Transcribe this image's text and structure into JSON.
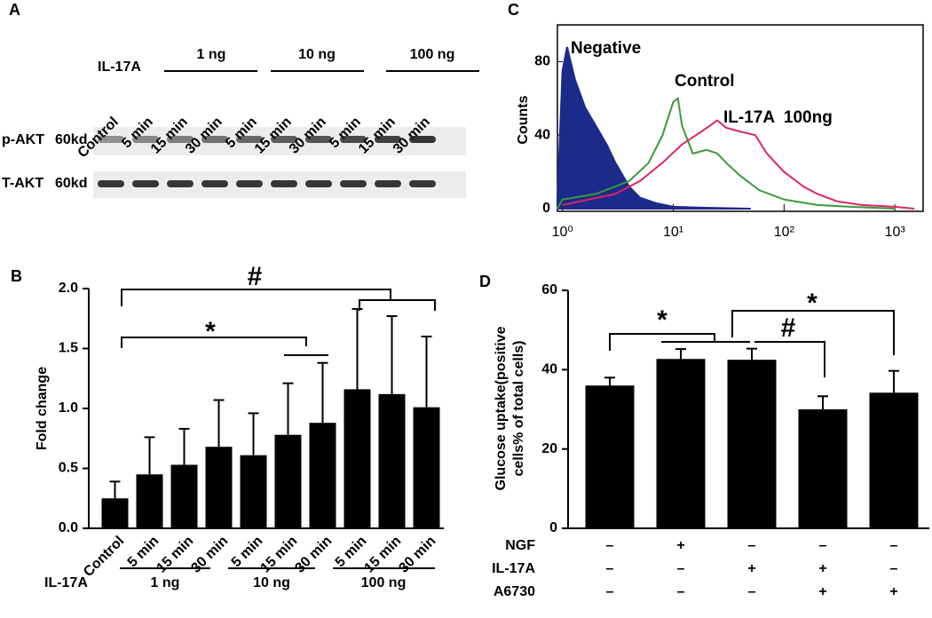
{
  "blot": {
    "panel": "A",
    "treatment_label": "IL-17A",
    "doses": [
      "1 ng",
      "10 ng",
      "100 ng"
    ],
    "lanes": [
      "Control",
      "5 min",
      "15 min",
      "30 min",
      "5 min",
      "15 min",
      "30 min",
      "5 min",
      "15 min",
      "30 min"
    ],
    "rows": [
      {
        "protein": "p-AKT",
        "size": "60kd"
      },
      {
        "protein": "T-AKT",
        "size": "60kd"
      }
    ]
  },
  "chart_data": [
    {
      "panel": "C",
      "type": "line",
      "ylabel": "Counts",
      "xscale": "log",
      "xlim": [
        0.9,
        1800
      ],
      "ylim": [
        0,
        100
      ],
      "yticks": [
        0,
        40,
        80
      ],
      "xticks": [
        {
          "value": 1,
          "label": "10⁰"
        },
        {
          "value": 10,
          "label": "10¹"
        },
        {
          "value": 100,
          "label": "10²"
        },
        {
          "value": 1000,
          "label": "10³"
        }
      ],
      "series": [
        {
          "name": "Negative",
          "color": "#1c2a8a",
          "filled": true,
          "x": [
            0.9,
            1,
            1.1,
            1.3,
            1.6,
            2,
            2.5,
            3,
            4,
            5,
            7,
            10,
            20,
            50
          ],
          "values": [
            5,
            75,
            88,
            70,
            55,
            45,
            35,
            25,
            12,
            6,
            3,
            1,
            0.5,
            0
          ]
        },
        {
          "name": "Control",
          "color": "#3a9a3a",
          "filled": false,
          "x": [
            0.9,
            1,
            2,
            4,
            6,
            8,
            10,
            11,
            12,
            15,
            20,
            25,
            30,
            40,
            60,
            100,
            200,
            400,
            1000
          ],
          "values": [
            0,
            5,
            8,
            15,
            25,
            40,
            58,
            60,
            45,
            30,
            32,
            30,
            25,
            18,
            10,
            5,
            2,
            1,
            0
          ]
        },
        {
          "name": "IL-17A  100ng",
          "color": "#e0245e",
          "filled": false,
          "x": [
            1,
            3,
            5,
            8,
            12,
            18,
            25,
            30,
            40,
            55,
            70,
            100,
            150,
            200,
            300,
            500,
            1000,
            1500
          ],
          "values": [
            2,
            8,
            15,
            25,
            35,
            42,
            48,
            44,
            42,
            40,
            30,
            20,
            12,
            8,
            4,
            2,
            1,
            0
          ]
        }
      ]
    },
    {
      "panel": "B",
      "type": "bar",
      "ylabel": "Fold change",
      "color": "#000000",
      "categories": [
        "Control",
        "5 min",
        "15 min",
        "30 min",
        "5 min",
        "15 min",
        "30 min",
        "5 min",
        "15 min",
        "30 min"
      ],
      "values": [
        0.25,
        0.45,
        0.53,
        0.68,
        0.61,
        0.78,
        0.88,
        1.16,
        1.12,
        1.01
      ],
      "errors": [
        0.14,
        0.31,
        0.3,
        0.39,
        0.35,
        0.43,
        0.5,
        0.67,
        0.65,
        0.59
      ],
      "ylim": [
        0,
        2
      ],
      "yticks": [
        {
          "value": 0,
          "label": "0.0"
        },
        0.5,
        {
          "value": 1,
          "label": "1.0"
        },
        1.5,
        {
          "value": 2,
          "label": "2.0"
        }
      ],
      "group_label": "IL-17A",
      "groups": [
        "1 ng",
        "10 ng",
        "100 ng"
      ],
      "annotations": [
        "#",
        "*"
      ]
    },
    {
      "panel": "D",
      "type": "bar",
      "ylabel": [
        "Glucose uptake(positive",
        "cells% of total cells)"
      ],
      "color": "#000000",
      "values": [
        36,
        42.7,
        42.5,
        30,
        34.2
      ],
      "errors": [
        2,
        2.5,
        2.8,
        3.3,
        5.5
      ],
      "ylim": [
        0,
        60
      ],
      "yticks": [
        0,
        20,
        40,
        60
      ],
      "treatments": [
        {
          "name": "NGF",
          "signs": [
            "–",
            "+",
            "–",
            "–",
            "–"
          ]
        },
        {
          "name": "IL-17A",
          "signs": [
            "–",
            "–",
            "+",
            "+",
            "–"
          ]
        },
        {
          "name": "A6730",
          "signs": [
            "–",
            "–",
            "–",
            "+",
            "+"
          ]
        }
      ],
      "annotations": [
        "*",
        "#",
        "*"
      ]
    }
  ]
}
